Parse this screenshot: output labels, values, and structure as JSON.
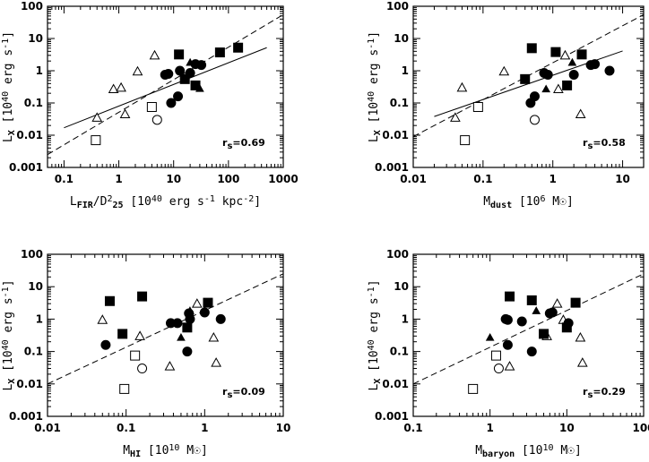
{
  "chart_data": [
    {
      "type": "scatter",
      "x_scale": "log",
      "y_scale": "log",
      "xlim": [
        0.05,
        1000
      ],
      "ylim": [
        0.001,
        100
      ],
      "x_ticks": [
        0.1,
        1,
        10,
        100,
        1000
      ],
      "x_tick_labels": [
        "0.1",
        "1",
        "10",
        "100",
        "1000"
      ],
      "y_ticks": [
        0.001,
        0.01,
        0.1,
        1,
        10,
        100
      ],
      "y_tick_labels": [
        "0.001",
        "0.01",
        "0.1",
        "1",
        "10",
        "100"
      ],
      "xlabel": {
        "base": "L",
        "sub": "FIR",
        "mid": "/D",
        "sup": "2",
        "sub2": "25",
        "rest": " [10",
        "sup2": "40",
        "rest2": " erg s",
        "sup3": "-1",
        "rest3": " kpc",
        "sup4": "-2",
        "rest4": "]"
      },
      "ylabel": {
        "base": "L",
        "sub": "X",
        "rest": " [10",
        "sup": "40",
        "rest2": " erg s",
        "sup2": "-1",
        "rest3": "]"
      },
      "rs_label": "r",
      "rs_sub": "s",
      "rs_value": "=0.69",
      "lines": [
        {
          "style": "solid",
          "points": [
            [
              0.1,
              0.017
            ],
            [
              500,
              5.2
            ]
          ]
        },
        {
          "style": "dashed",
          "points": [
            [
              0.05,
              0.0025
            ],
            [
              1000,
              55
            ]
          ]
        }
      ],
      "points": {
        "filled_squares": [
          [
            12.5,
            3.2
          ],
          [
            16,
            0.55
          ],
          [
            25,
            0.35
          ],
          [
            70,
            3.7
          ],
          [
            150,
            5.2
          ]
        ],
        "filled_circles": [
          [
            7,
            0.75
          ],
          [
            8,
            0.8
          ],
          [
            9,
            0.1
          ],
          [
            12,
            0.16
          ],
          [
            13,
            1.0
          ],
          [
            20,
            0.85
          ],
          [
            25,
            1.6
          ],
          [
            32,
            1.5
          ]
        ],
        "filled_triangles": [
          [
            20,
            1.8
          ],
          [
            30,
            0.28
          ]
        ],
        "open_squares": [
          [
            0.38,
            0.007
          ],
          [
            4,
            0.075
          ]
        ],
        "open_circles": [
          [
            5,
            0.03
          ]
        ],
        "open_triangles": [
          [
            0.4,
            0.035
          ],
          [
            0.8,
            0.27
          ],
          [
            1.1,
            0.3
          ],
          [
            1.3,
            0.045
          ],
          [
            2.2,
            0.95
          ],
          [
            4.5,
            3.0
          ]
        ]
      }
    },
    {
      "type": "scatter",
      "x_scale": "log",
      "y_scale": "log",
      "xlim": [
        0.01,
        20
      ],
      "ylim": [
        0.001,
        100
      ],
      "x_ticks": [
        0.01,
        0.1,
        1,
        10
      ],
      "x_tick_labels": [
        "0.01",
        "0.1",
        "1",
        "10"
      ],
      "y_ticks": [
        0.001,
        0.01,
        0.1,
        1,
        10,
        100
      ],
      "y_tick_labels": [
        "0.001",
        "0.01",
        "0.1",
        "1",
        "10",
        "100"
      ],
      "xlabel": {
        "base": "M",
        "sub": "dust",
        "rest": " [10",
        "sup": "6",
        "rest2": " M",
        "sym": "☉",
        "rest3": "]"
      },
      "ylabel": {
        "base": "L",
        "sub": "X",
        "rest": " [10",
        "sup": "40",
        "rest2": " erg s",
        "sup2": "-1",
        "rest3": "]"
      },
      "rs_label": "r",
      "rs_sub": "s",
      "rs_value": "=0.58",
      "lines": [
        {
          "style": "solid",
          "points": [
            [
              0.02,
              0.038
            ],
            [
              10,
              4.1
            ]
          ]
        },
        {
          "style": "dashed",
          "points": [
            [
              0.01,
              0.009
            ],
            [
              20,
              55
            ]
          ]
        }
      ],
      "points": {
        "filled_squares": [
          [
            0.4,
            0.55
          ],
          [
            0.5,
            5.0
          ],
          [
            1.1,
            3.8
          ],
          [
            1.6,
            0.35
          ],
          [
            2.6,
            3.2
          ]
        ],
        "filled_circles": [
          [
            0.48,
            0.1
          ],
          [
            0.55,
            0.16
          ],
          [
            0.75,
            0.85
          ],
          [
            0.85,
            0.75
          ],
          [
            2.0,
            0.75
          ],
          [
            3.5,
            1.5
          ],
          [
            4.0,
            1.6
          ],
          [
            6.5,
            1.0
          ]
        ],
        "filled_triangles": [
          [
            0.8,
            0.27
          ],
          [
            1.9,
            1.8
          ]
        ],
        "open_squares": [
          [
            0.055,
            0.007
          ],
          [
            0.085,
            0.075
          ]
        ],
        "open_circles": [
          [
            0.55,
            0.03
          ]
        ],
        "open_triangles": [
          [
            0.04,
            0.035
          ],
          [
            0.05,
            0.3
          ],
          [
            0.2,
            0.95
          ],
          [
            1.2,
            0.27
          ],
          [
            1.5,
            3.0
          ],
          [
            2.5,
            0.045
          ]
        ]
      }
    },
    {
      "type": "scatter",
      "x_scale": "log",
      "y_scale": "log",
      "xlim": [
        0.01,
        10
      ],
      "ylim": [
        0.001,
        100
      ],
      "x_ticks": [
        0.01,
        0.1,
        1,
        10
      ],
      "x_tick_labels": [
        "0.01",
        "0.1",
        "1",
        "10"
      ],
      "y_ticks": [
        0.001,
        0.01,
        0.1,
        1,
        10,
        100
      ],
      "y_tick_labels": [
        "0.001",
        "0.01",
        "0.1",
        "1",
        "10",
        "100"
      ],
      "xlabel": {
        "base": "M",
        "sub": "HI",
        "rest": " [10",
        "sup": "10",
        "rest2": " M",
        "sym": "☉",
        "rest3": "]"
      },
      "ylabel": {
        "base": "L",
        "sub": "X",
        "rest": " [10",
        "sup": "40",
        "rest2": " erg s",
        "sup2": "-1",
        "rest3": "]"
      },
      "rs_label": "r",
      "rs_sub": "s",
      "rs_value": "=0.09",
      "lines": [
        {
          "style": "dashed",
          "points": [
            [
              0.01,
              0.01
            ],
            [
              10,
              25
            ]
          ]
        }
      ],
      "points": {
        "filled_squares": [
          [
            0.062,
            3.6
          ],
          [
            0.09,
            0.35
          ],
          [
            0.16,
            5.0
          ],
          [
            0.6,
            0.55
          ],
          [
            1.1,
            3.2
          ]
        ],
        "filled_circles": [
          [
            0.055,
            0.16
          ],
          [
            0.37,
            0.75
          ],
          [
            0.45,
            0.75
          ],
          [
            0.6,
            0.1
          ],
          [
            0.63,
            1.5
          ],
          [
            0.65,
            1.0
          ],
          [
            1.0,
            1.6
          ],
          [
            1.6,
            1.0
          ]
        ],
        "filled_triangles": [
          [
            0.5,
            0.27
          ],
          [
            0.65,
            1.8
          ]
        ],
        "open_squares": [
          [
            0.095,
            0.007
          ],
          [
            0.13,
            0.075
          ]
        ],
        "open_circles": [
          [
            0.16,
            0.03
          ]
        ],
        "open_triangles": [
          [
            0.05,
            0.95
          ],
          [
            0.15,
            0.3
          ],
          [
            0.36,
            0.035
          ],
          [
            1.3,
            0.27
          ],
          [
            1.4,
            0.045
          ],
          [
            0.8,
            3.0
          ]
        ]
      }
    },
    {
      "type": "scatter",
      "x_scale": "log",
      "y_scale": "log",
      "xlim": [
        0.1,
        100
      ],
      "ylim": [
        0.001,
        100
      ],
      "x_ticks": [
        0.1,
        1,
        10,
        100
      ],
      "x_tick_labels": [
        "0.1",
        "1",
        "10",
        "100"
      ],
      "y_ticks": [
        0.001,
        0.01,
        0.1,
        1,
        10,
        100
      ],
      "y_tick_labels": [
        "0.001",
        "0.01",
        "0.1",
        "1",
        "10",
        "100"
      ],
      "xlabel": {
        "base": "M",
        "sub": "baryon",
        "rest": " [10",
        "sup": "10",
        "rest2": " M",
        "sym": "☉",
        "rest3": "]"
      },
      "ylabel": {
        "base": "L",
        "sub": "X",
        "rest": " [10",
        "sup": "40",
        "rest2": " erg s",
        "sup2": "-1",
        "rest3": "]"
      },
      "rs_label": "r",
      "rs_sub": "s",
      "rs_value": "=0.29",
      "lines": [
        {
          "style": "dashed",
          "points": [
            [
              0.1,
              0.01
            ],
            [
              100,
              25
            ]
          ]
        }
      ],
      "points": {
        "filled_squares": [
          [
            1.8,
            5.0
          ],
          [
            3.5,
            3.8
          ],
          [
            5.0,
            0.35
          ],
          [
            10,
            0.55
          ],
          [
            13,
            3.2
          ]
        ],
        "filled_circles": [
          [
            1.6,
            1.0
          ],
          [
            1.7,
            0.95
          ],
          [
            1.7,
            0.16
          ],
          [
            2.6,
            0.85
          ],
          [
            3.5,
            0.1
          ],
          [
            6.0,
            1.5
          ],
          [
            6.5,
            1.6
          ],
          [
            10.5,
            0.75
          ]
        ],
        "filled_triangles": [
          [
            1.0,
            0.27
          ],
          [
            4.0,
            1.8
          ]
        ],
        "open_squares": [
          [
            0.6,
            0.007
          ],
          [
            1.2,
            0.075
          ]
        ],
        "open_circles": [
          [
            1.3,
            0.03
          ]
        ],
        "open_triangles": [
          [
            1.8,
            0.035
          ],
          [
            5.5,
            0.3
          ],
          [
            15,
            0.27
          ],
          [
            16,
            0.045
          ],
          [
            7.5,
            3.0
          ],
          [
            9.0,
            0.95
          ]
        ]
      }
    }
  ]
}
